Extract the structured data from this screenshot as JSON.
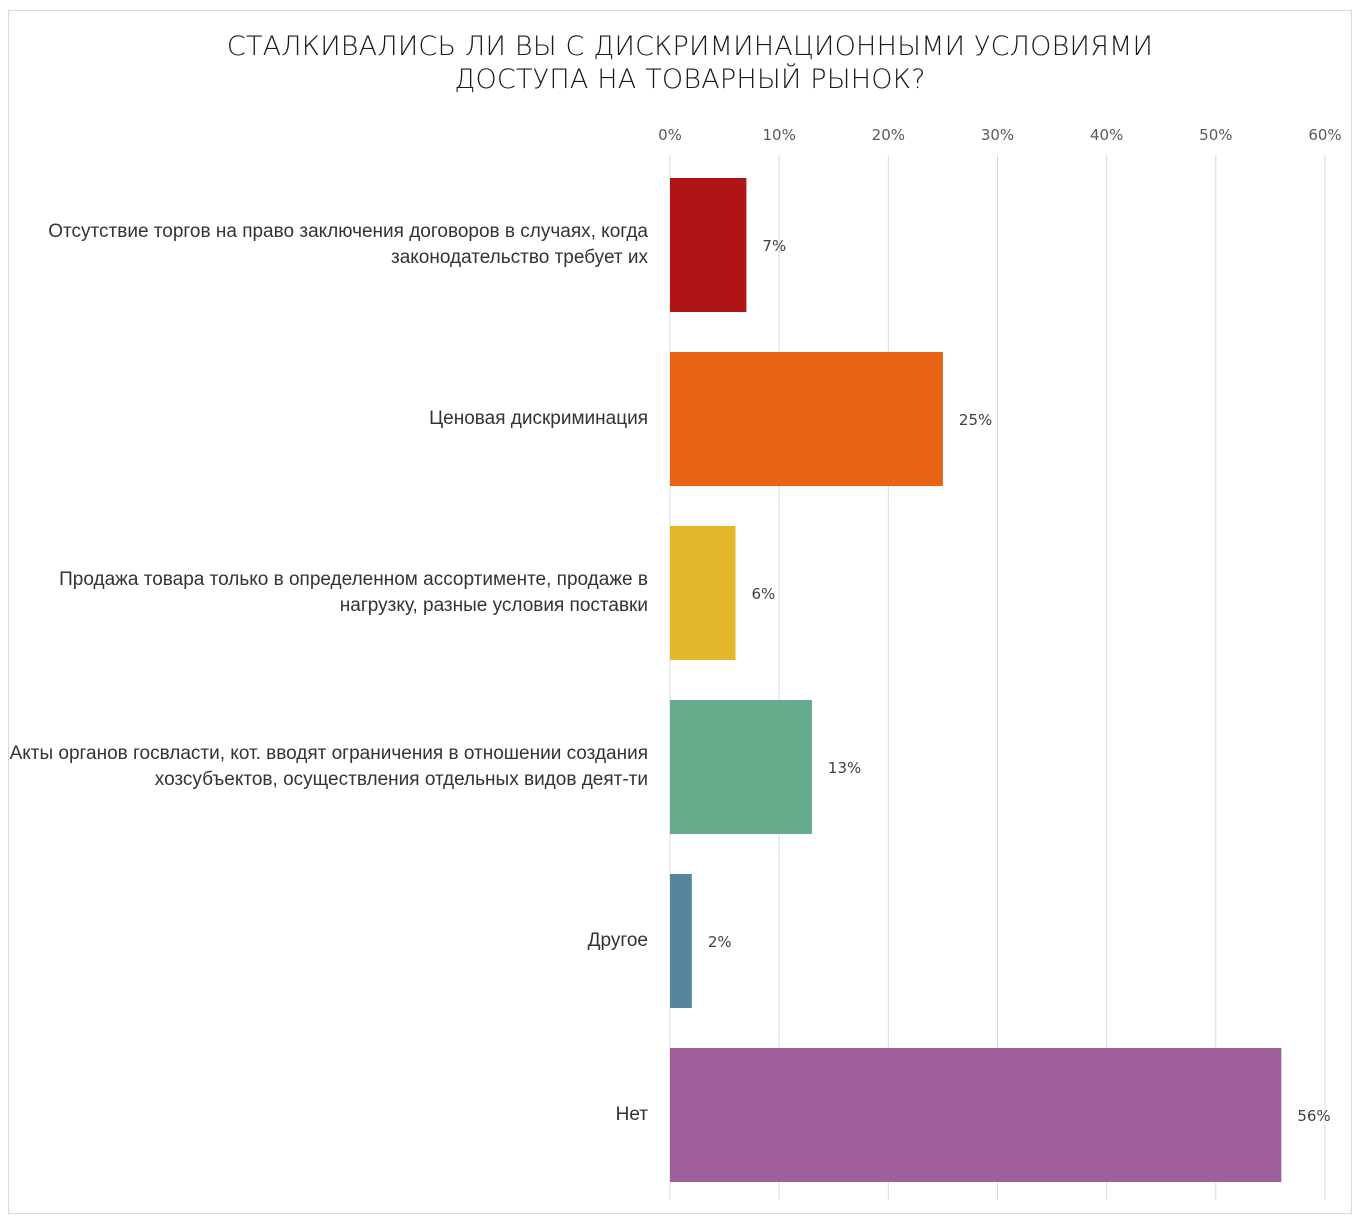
{
  "chart_data": {
    "type": "bar",
    "orientation": "horizontal",
    "title_lines": [
      "СТАЛКИВАЛИСЬ ЛИ ВЫ С ДИСКРИМИНАЦИОННЫМИ УСЛОВИЯМИ",
      "ДОСТУПА НА ТОВАРНЫЙ РЫНОК?"
    ],
    "categories": [
      "Отсутствие торгов на право заключения договоров в случаях, когда законодательство требует их",
      "Ценовая дискриминация",
      "Продажа товара только в определенном ассортименте, продаже в нагрузку, разные условия поставки",
      "Акты органов госвласти, кот. вводят ограничения в отношении создания хозсубъектов, осуществления отдельных видов деят-ти",
      "Другое",
      "Нет"
    ],
    "values": [
      7,
      25,
      6,
      13,
      2,
      56
    ],
    "data_labels": [
      "7%",
      "25%",
      "6%",
      "13%",
      "2%",
      "56%"
    ],
    "colors": [
      "#b01516",
      "#e86314",
      "#e3b72a",
      "#67ab8d",
      "#55869c",
      "#9e5f9b"
    ],
    "xlim": [
      0,
      60
    ],
    "xticks": [
      0,
      10,
      20,
      30,
      40,
      50,
      60
    ],
    "xtick_labels": [
      "0%",
      "10%",
      "20%",
      "30%",
      "40%",
      "50%",
      "60%"
    ],
    "axis_position": "top",
    "grid": true,
    "legend": false
  }
}
